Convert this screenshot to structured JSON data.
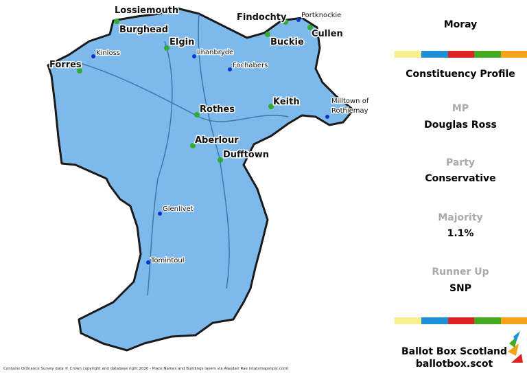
{
  "map": {
    "towns": [
      "Lossiemouth",
      "Burghead",
      "Elgin",
      "Findochty",
      "Buckie",
      "Cullen",
      "Forres",
      "Rothes",
      "Keith",
      "Aberlour",
      "Dufftown"
    ],
    "villages": [
      "Portknockie",
      "Kinloss",
      "Lhanbryde",
      "Fochabers",
      "Glenlivet",
      "Tomintoul"
    ],
    "village_multiline": [
      "Milltown of",
      "Rothiemay"
    ],
    "attribution": "Contains Ordnance Survey data © Crown copyright and database right 2020 - Place Names and Buildings layers via Alasdair Rae (statsmapsnpix.com)"
  },
  "sidebar": {
    "title": "Moray",
    "subtitle": "Constituency Profile",
    "fields": [
      {
        "label": "MP",
        "value": "Douglas Ross"
      },
      {
        "label": "Party",
        "value": "Conservative"
      },
      {
        "label": "Majority",
        "value": "1.1%"
      },
      {
        "label": "Runner Up",
        "value": "SNP"
      }
    ],
    "brand": "Ballot Box Scotland",
    "url": "ballotbox.scot"
  }
}
